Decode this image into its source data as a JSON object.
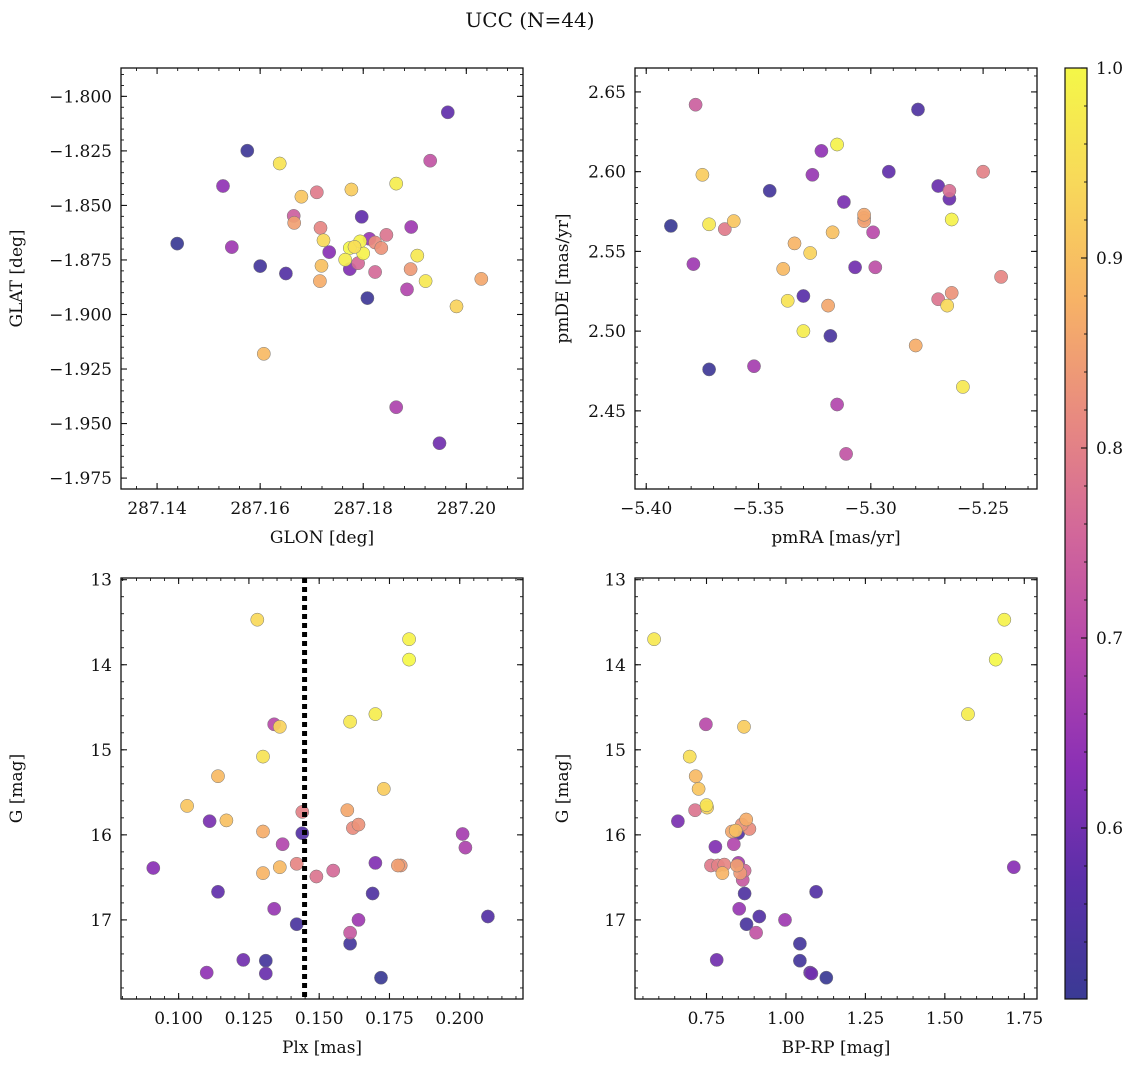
{
  "suptitle": "UCC (N=44)",
  "colorbar": {
    "ticks": [
      0.6,
      0.7,
      0.8,
      0.9,
      1.0
    ],
    "tick_labels": [
      "0.6",
      "0.7",
      "0.8",
      "0.9",
      "1.0"
    ],
    "vmin": 0.51,
    "vmax": 1.0,
    "colormap": "plasma",
    "colors": [
      "#3a3a94",
      "#5a2fa8",
      "#8b30b5",
      "#b547ab",
      "#d2679a",
      "#e88a80",
      "#f7b266",
      "#f8d85a",
      "#f4f748"
    ]
  },
  "chart_data": [
    {
      "type": "scatter",
      "title": "",
      "xlabel": "GLON [deg]",
      "ylabel": "GLAT [deg]",
      "xlim": [
        287.133,
        287.211
      ],
      "ylim": [
        -1.98,
        -1.787
      ],
      "y_inverted": false,
      "xticks": [
        287.14,
        287.16,
        287.18,
        287.2
      ],
      "xtick_labels": [
        "287.14",
        "287.16",
        "287.18",
        "287.20"
      ],
      "yticks": [
        -1.8,
        -1.825,
        -1.85,
        -1.875,
        -1.9,
        -1.925,
        -1.95,
        -1.975
      ],
      "ytick_labels": [
        "−1.800",
        "−1.825",
        "−1.850",
        "−1.875",
        "−1.900",
        "−1.925",
        "−1.950",
        "−1.975"
      ],
      "points": [
        [
          287.1439,
          -1.8675,
          0.51
        ],
        [
          287.1575,
          -1.8249,
          0.52
        ],
        [
          287.16,
          -1.8778,
          0.53
        ],
        [
          287.165,
          -1.8812,
          0.56
        ],
        [
          287.1964,
          -1.8073,
          0.58
        ],
        [
          287.1808,
          -1.8925,
          0.52
        ],
        [
          287.1797,
          -1.8552,
          0.58
        ],
        [
          287.1948,
          -1.959,
          0.6
        ],
        [
          287.1864,
          -1.9425,
          0.68
        ],
        [
          287.1528,
          -1.8411,
          0.64
        ],
        [
          287.1545,
          -1.8691,
          0.66
        ],
        [
          287.1734,
          -1.8714,
          0.63
        ],
        [
          287.1774,
          -1.8792,
          0.62
        ],
        [
          287.1812,
          -1.8653,
          0.65
        ],
        [
          287.1893,
          -1.8599,
          0.66
        ],
        [
          287.1885,
          -1.8885,
          0.69
        ],
        [
          287.193,
          -1.8295,
          0.72
        ],
        [
          287.1665,
          -1.8548,
          0.74
        ],
        [
          287.179,
          -1.8765,
          0.76
        ],
        [
          287.1823,
          -1.8805,
          0.76
        ],
        [
          287.1845,
          -1.8635,
          0.78
        ],
        [
          287.171,
          -1.844,
          0.79
        ],
        [
          287.1717,
          -1.8603,
          0.81
        ],
        [
          287.1823,
          -1.867,
          0.82
        ],
        [
          287.1835,
          -1.8695,
          0.83
        ],
        [
          287.1892,
          -1.8792,
          0.84
        ],
        [
          287.1666,
          -1.858,
          0.85
        ],
        [
          287.2029,
          -1.8837,
          0.86
        ],
        [
          287.1716,
          -1.8847,
          0.87
        ],
        [
          287.1607,
          -1.918,
          0.89
        ],
        [
          287.1719,
          -1.8777,
          0.9
        ],
        [
          287.168,
          -1.846,
          0.91
        ],
        [
          287.1777,
          -1.8427,
          0.92
        ],
        [
          287.1981,
          -1.8963,
          0.93
        ],
        [
          287.1723,
          -1.866,
          0.94
        ],
        [
          287.1638,
          -1.8308,
          0.96
        ],
        [
          287.1905,
          -1.873,
          0.97
        ],
        [
          287.1864,
          -1.84,
          0.98
        ],
        [
          287.18,
          -1.872,
          0.99
        ],
        [
          287.1774,
          -1.8695,
          1.0
        ],
        [
          287.1794,
          -1.8665,
          0.99
        ],
        [
          287.1921,
          -1.8847,
          0.97
        ],
        [
          287.1765,
          -1.8749,
          0.98
        ],
        [
          287.1783,
          -1.869,
          0.95
        ]
      ]
    },
    {
      "type": "scatter",
      "title": "",
      "xlabel": "pmRA [mas/yr]",
      "ylabel": "pmDE [mas/yr]",
      "xlim": [
        -5.405,
        -5.226
      ],
      "ylim": [
        2.401,
        2.665
      ],
      "y_inverted": false,
      "xticks": [
        -5.4,
        -5.35,
        -5.3,
        -5.25
      ],
      "xtick_labels": [
        "−5.40",
        "−5.35",
        "−5.30",
        "−5.25"
      ],
      "yticks": [
        2.45,
        2.5,
        2.55,
        2.6,
        2.65
      ],
      "ytick_labels": [
        "2.45",
        "2.50",
        "2.55",
        "2.60",
        "2.65"
      ],
      "points": [
        [
          -5.389,
          2.566,
          0.51
        ],
        [
          -5.372,
          2.476,
          0.52
        ],
        [
          -5.345,
          2.588,
          0.53
        ],
        [
          -5.318,
          2.497,
          0.54
        ],
        [
          -5.279,
          2.639,
          0.55
        ],
        [
          -5.33,
          2.522,
          0.57
        ],
        [
          -5.292,
          2.6,
          0.58
        ],
        [
          -5.27,
          2.591,
          0.59
        ],
        [
          -5.265,
          2.583,
          0.59
        ],
        [
          -5.307,
          2.54,
          0.6
        ],
        [
          -5.312,
          2.581,
          0.61
        ],
        [
          -5.322,
          2.613,
          0.64
        ],
        [
          -5.326,
          2.598,
          0.65
        ],
        [
          -5.379,
          2.542,
          0.66
        ],
        [
          -5.352,
          2.478,
          0.67
        ],
        [
          -5.315,
          2.454,
          0.69
        ],
        [
          -5.299,
          2.562,
          0.7
        ],
        [
          -5.298,
          2.54,
          0.71
        ],
        [
          -5.311,
          2.423,
          0.72
        ],
        [
          -5.378,
          2.642,
          0.74
        ],
        [
          -5.265,
          2.588,
          0.77
        ],
        [
          -5.27,
          2.52,
          0.78
        ],
        [
          -5.365,
          2.564,
          0.79
        ],
        [
          -5.25,
          2.6,
          0.8
        ],
        [
          -5.242,
          2.534,
          0.81
        ],
        [
          -5.264,
          2.524,
          0.83
        ],
        [
          -5.303,
          2.571,
          0.84
        ],
        [
          -5.303,
          2.569,
          0.85
        ],
        [
          -5.319,
          2.516,
          0.86
        ],
        [
          -5.28,
          2.491,
          0.87
        ],
        [
          -5.334,
          2.555,
          0.88
        ],
        [
          -5.339,
          2.539,
          0.89
        ],
        [
          -5.317,
          2.562,
          0.9
        ],
        [
          -5.361,
          2.569,
          0.91
        ],
        [
          -5.375,
          2.598,
          0.92
        ],
        [
          -5.327,
          2.549,
          0.93
        ],
        [
          -5.266,
          2.516,
          0.94
        ],
        [
          -5.337,
          2.519,
          0.96
        ],
        [
          -5.372,
          2.567,
          0.97
        ],
        [
          -5.33,
          2.5,
          0.98
        ],
        [
          -5.259,
          2.465,
          0.97
        ],
        [
          -5.264,
          2.57,
          0.99
        ],
        [
          -5.315,
          2.617,
          0.99
        ],
        [
          -5.303,
          2.573,
          0.86
        ]
      ]
    },
    {
      "type": "scatter",
      "title": "",
      "xlabel": "Plx [mas]",
      "ylabel": "G [mag]",
      "xlim": [
        0.0795,
        0.2225
      ],
      "ylim": [
        17.93,
        12.98
      ],
      "y_inverted": true,
      "vline": {
        "x": 0.1448,
        "style": "dotted"
      },
      "xticks": [
        0.1,
        0.125,
        0.15,
        0.175,
        0.2
      ],
      "xtick_labels": [
        "0.100",
        "0.125",
        "0.150",
        "0.175",
        "0.200"
      ],
      "yticks": [
        13,
        14,
        15,
        16,
        17
      ],
      "ytick_labels": [
        "13",
        "14",
        "15",
        "16",
        "17"
      ],
      "points": [
        [
          0.172,
          17.68,
          0.51
        ],
        [
          0.161,
          17.28,
          0.53
        ],
        [
          0.131,
          17.48,
          0.53
        ],
        [
          0.142,
          17.05,
          0.54
        ],
        [
          0.169,
          16.69,
          0.55
        ],
        [
          0.21,
          16.96,
          0.56
        ],
        [
          0.144,
          15.98,
          0.56
        ],
        [
          0.114,
          16.67,
          0.58
        ],
        [
          0.131,
          17.63,
          0.59
        ],
        [
          0.123,
          17.47,
          0.6
        ],
        [
          0.111,
          15.84,
          0.61
        ],
        [
          0.17,
          16.33,
          0.62
        ],
        [
          0.091,
          16.39,
          0.63
        ],
        [
          0.11,
          17.62,
          0.64
        ],
        [
          0.134,
          16.87,
          0.65
        ],
        [
          0.164,
          17.0,
          0.66
        ],
        [
          0.201,
          15.99,
          0.67
        ],
        [
          0.202,
          16.15,
          0.68
        ],
        [
          0.137,
          16.11,
          0.69
        ],
        [
          0.134,
          14.7,
          0.7
        ],
        [
          0.161,
          17.15,
          0.73
        ],
        [
          0.155,
          16.42,
          0.76
        ],
        [
          0.149,
          16.49,
          0.78
        ],
        [
          0.144,
          15.73,
          0.8
        ],
        [
          0.142,
          16.34,
          0.81
        ],
        [
          0.162,
          15.92,
          0.82
        ],
        [
          0.164,
          15.88,
          0.83
        ],
        [
          0.179,
          16.36,
          0.84
        ],
        [
          0.178,
          16.36,
          0.85
        ],
        [
          0.16,
          15.71,
          0.86
        ],
        [
          0.13,
          15.96,
          0.87
        ],
        [
          0.13,
          16.45,
          0.88
        ],
        [
          0.136,
          16.38,
          0.89
        ],
        [
          0.114,
          15.31,
          0.89
        ],
        [
          0.117,
          15.83,
          0.9
        ],
        [
          0.103,
          15.66,
          0.91
        ],
        [
          0.173,
          15.46,
          0.92
        ],
        [
          0.136,
          14.73,
          0.93
        ],
        [
          0.128,
          13.47,
          0.94
        ],
        [
          0.13,
          15.08,
          0.96
        ],
        [
          0.161,
          14.67,
          0.97
        ],
        [
          0.17,
          14.58,
          0.98
        ],
        [
          0.182,
          13.7,
          0.99
        ],
        [
          0.182,
          13.94,
          1.0
        ]
      ]
    },
    {
      "type": "scatter",
      "title": "",
      "xlabel": "BP-RP [mag]",
      "ylabel": "G [mag]",
      "xlim": [
        0.525,
        1.79
      ],
      "ylim": [
        17.93,
        12.98
      ],
      "y_inverted": true,
      "xticks": [
        0.75,
        1.0,
        1.25,
        1.5,
        1.75
      ],
      "xtick_labels": [
        "0.75",
        "1.00",
        "1.25",
        "1.50",
        "1.75"
      ],
      "yticks": [
        13,
        14,
        15,
        16,
        17
      ],
      "ytick_labels": [
        "13",
        "14",
        "15",
        "16",
        "17"
      ],
      "points": [
        [
          1.127,
          17.68,
          0.51
        ],
        [
          1.044,
          17.28,
          0.53
        ],
        [
          1.044,
          17.48,
          0.53
        ],
        [
          0.876,
          17.05,
          0.54
        ],
        [
          0.87,
          16.69,
          0.55
        ],
        [
          1.095,
          16.67,
          0.56
        ],
        [
          0.916,
          16.96,
          0.56
        ],
        [
          0.85,
          15.98,
          0.56
        ],
        [
          1.076,
          17.62,
          0.59
        ],
        [
          1.08,
          17.63,
          0.6
        ],
        [
          0.782,
          17.47,
          0.6
        ],
        [
          0.66,
          15.84,
          0.61
        ],
        [
          1.717,
          16.38,
          0.63
        ],
        [
          0.778,
          16.14,
          0.62
        ],
        [
          0.853,
          16.87,
          0.65
        ],
        [
          0.997,
          17.0,
          0.66
        ],
        [
          0.85,
          16.33,
          0.67
        ],
        [
          0.836,
          16.11,
          0.69
        ],
        [
          0.748,
          14.7,
          0.7
        ],
        [
          0.864,
          16.53,
          0.73
        ],
        [
          0.906,
          17.15,
          0.72
        ],
        [
          0.87,
          16.42,
          0.76
        ],
        [
          0.714,
          15.71,
          0.78
        ],
        [
          0.764,
          16.36,
          0.79
        ],
        [
          0.786,
          16.36,
          0.8
        ],
        [
          0.806,
          16.35,
          0.81
        ],
        [
          0.885,
          15.93,
          0.82
        ],
        [
          0.861,
          15.88,
          0.83
        ],
        [
          0.856,
          16.45,
          0.84
        ],
        [
          0.846,
          16.36,
          0.85
        ],
        [
          0.83,
          15.96,
          0.86
        ],
        [
          0.875,
          15.82,
          0.87
        ],
        [
          0.8,
          16.45,
          0.88
        ],
        [
          0.716,
          15.31,
          0.89
        ],
        [
          0.842,
          15.95,
          0.9
        ],
        [
          0.725,
          15.46,
          0.91
        ],
        [
          0.868,
          14.73,
          0.92
        ],
        [
          0.752,
          15.68,
          0.93
        ],
        [
          0.697,
          15.08,
          0.95
        ],
        [
          0.75,
          15.65,
          0.96
        ],
        [
          0.585,
          13.7,
          0.97
        ],
        [
          1.573,
          14.58,
          0.98
        ],
        [
          1.687,
          13.47,
          0.99
        ],
        [
          1.66,
          13.94,
          1.0
        ]
      ]
    }
  ]
}
